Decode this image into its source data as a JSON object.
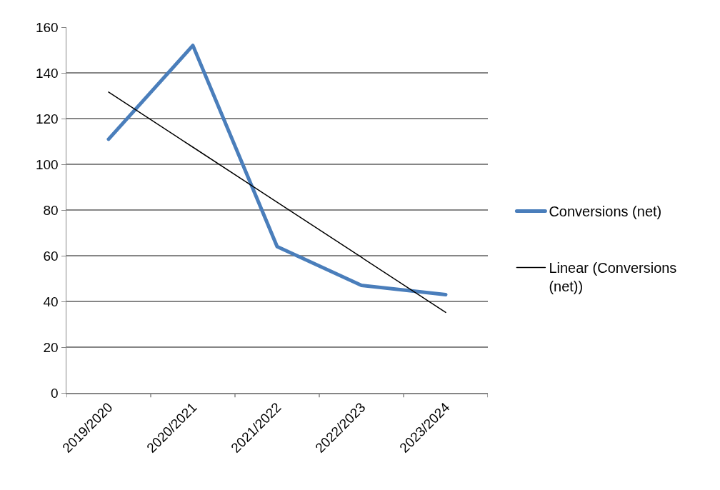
{
  "chart_data": {
    "type": "line",
    "categories": [
      "2019/2020",
      "2020/2021",
      "2021/2022",
      "2022/2023",
      "2023/2024"
    ],
    "series": [
      {
        "name": "Conversions (net)",
        "color": "#4a7ebb",
        "values": [
          111,
          152,
          64,
          47,
          43
        ]
      },
      {
        "name": "Linear (Conversions (net))",
        "type": "line",
        "color": "#000000",
        "x": [
          "2019/2020",
          "2020/2021",
          "2021/2022",
          "2022/2023",
          "2023/2024"
        ],
        "values": [
          131.6,
          107.5,
          83.4,
          59.3,
          35.2
        ]
      }
    ],
    "ylim": [
      0,
      160
    ],
    "yticks": [
      0,
      20,
      40,
      60,
      80,
      100,
      120,
      140,
      160
    ],
    "grid": "y",
    "legend": "right",
    "marker": "none",
    "line_style": "solid"
  }
}
